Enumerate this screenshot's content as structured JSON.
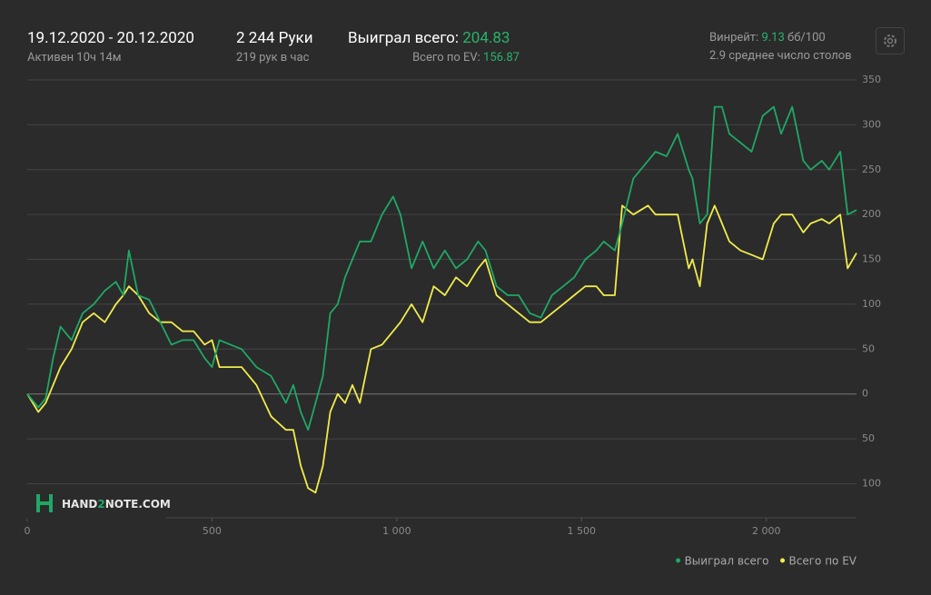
{
  "header": {
    "date_range": "19.12.2020 - 20.12.2020",
    "active": "Активен 10ч 14м",
    "hands": "2 244 Руки",
    "hands_per_hour": "219 рук в час",
    "won_label": "Выиграл всего:",
    "won_value": "204.83",
    "ev_label": "Всего по EV:",
    "ev_value": "156.87",
    "winrate_label": "Винрейт:",
    "winrate_value": "9.13",
    "winrate_unit": "бб/100",
    "tables": "2.9 среднее число столов"
  },
  "logo": {
    "part1": "HAND",
    "part2": "2",
    "part3": "NOTE.COM"
  },
  "chart_data": {
    "type": "line",
    "x": [
      0,
      30,
      50,
      70,
      90,
      120,
      150,
      180,
      210,
      240,
      260,
      275,
      300,
      330,
      360,
      390,
      420,
      450,
      480,
      500,
      520,
      550,
      580,
      620,
      660,
      700,
      720,
      740,
      760,
      780,
      800,
      820,
      840,
      860,
      880,
      900,
      930,
      960,
      990,
      1010,
      1040,
      1070,
      1100,
      1130,
      1160,
      1190,
      1220,
      1240,
      1270,
      1300,
      1330,
      1360,
      1390,
      1420,
      1450,
      1480,
      1510,
      1540,
      1560,
      1590,
      1610,
      1640,
      1680,
      1700,
      1730,
      1760,
      1790,
      1800,
      1820,
      1840,
      1860,
      1880,
      1900,
      1930,
      1960,
      1990,
      2020,
      2040,
      2070,
      2100,
      2120,
      2150,
      2170,
      2200,
      2220,
      2244
    ],
    "series": [
      {
        "name": "Выиграл всего",
        "color": "#1fa866",
        "values": [
          0,
          -15,
          -5,
          40,
          75,
          60,
          90,
          100,
          115,
          125,
          110,
          160,
          110,
          105,
          80,
          55,
          60,
          60,
          40,
          30,
          60,
          55,
          50,
          30,
          20,
          -10,
          10,
          -20,
          -40,
          -10,
          20,
          90,
          100,
          130,
          150,
          170,
          170,
          200,
          220,
          200,
          140,
          170,
          140,
          160,
          140,
          150,
          170,
          160,
          120,
          110,
          110,
          90,
          85,
          110,
          120,
          130,
          150,
          160,
          170,
          160,
          190,
          240,
          260,
          270,
          265,
          290,
          250,
          240,
          190,
          200,
          320,
          320,
          290,
          280,
          270,
          310,
          320,
          290,
          320,
          260,
          250,
          260,
          250,
          270,
          200,
          205
        ]
      },
      {
        "name": "Всего по EV",
        "color": "#f0ec4c",
        "values": [
          0,
          -20,
          -10,
          10,
          30,
          50,
          80,
          90,
          80,
          100,
          110,
          120,
          110,
          90,
          80,
          80,
          70,
          70,
          55,
          60,
          30,
          30,
          30,
          10,
          -25,
          -40,
          -40,
          -80,
          -105,
          -110,
          -80,
          -20,
          0,
          -10,
          10,
          -10,
          50,
          55,
          70,
          80,
          100,
          80,
          120,
          110,
          130,
          120,
          140,
          150,
          110,
          100,
          90,
          80,
          80,
          90,
          100,
          110,
          120,
          120,
          110,
          110,
          210,
          200,
          210,
          200,
          200,
          200,
          140,
          150,
          120,
          190,
          210,
          190,
          170,
          160,
          155,
          150,
          190,
          200,
          200,
          180,
          190,
          195,
          190,
          200,
          140,
          157
        ]
      }
    ],
    "xlim": [
      0,
      2244
    ],
    "ylim": [
      -138,
      350
    ],
    "xticks": [
      0,
      500,
      {
        "value": 1000,
        "label": "1 000"
      },
      {
        "value": 1500,
        "label": "1 500"
      },
      {
        "value": 2000,
        "label": "2 000"
      }
    ],
    "yticks": [
      {
        "value": -100,
        "label": "100"
      },
      {
        "value": -50,
        "label": "50"
      },
      0,
      50,
      100,
      150,
      200,
      250,
      300,
      350
    ],
    "grid": true
  }
}
